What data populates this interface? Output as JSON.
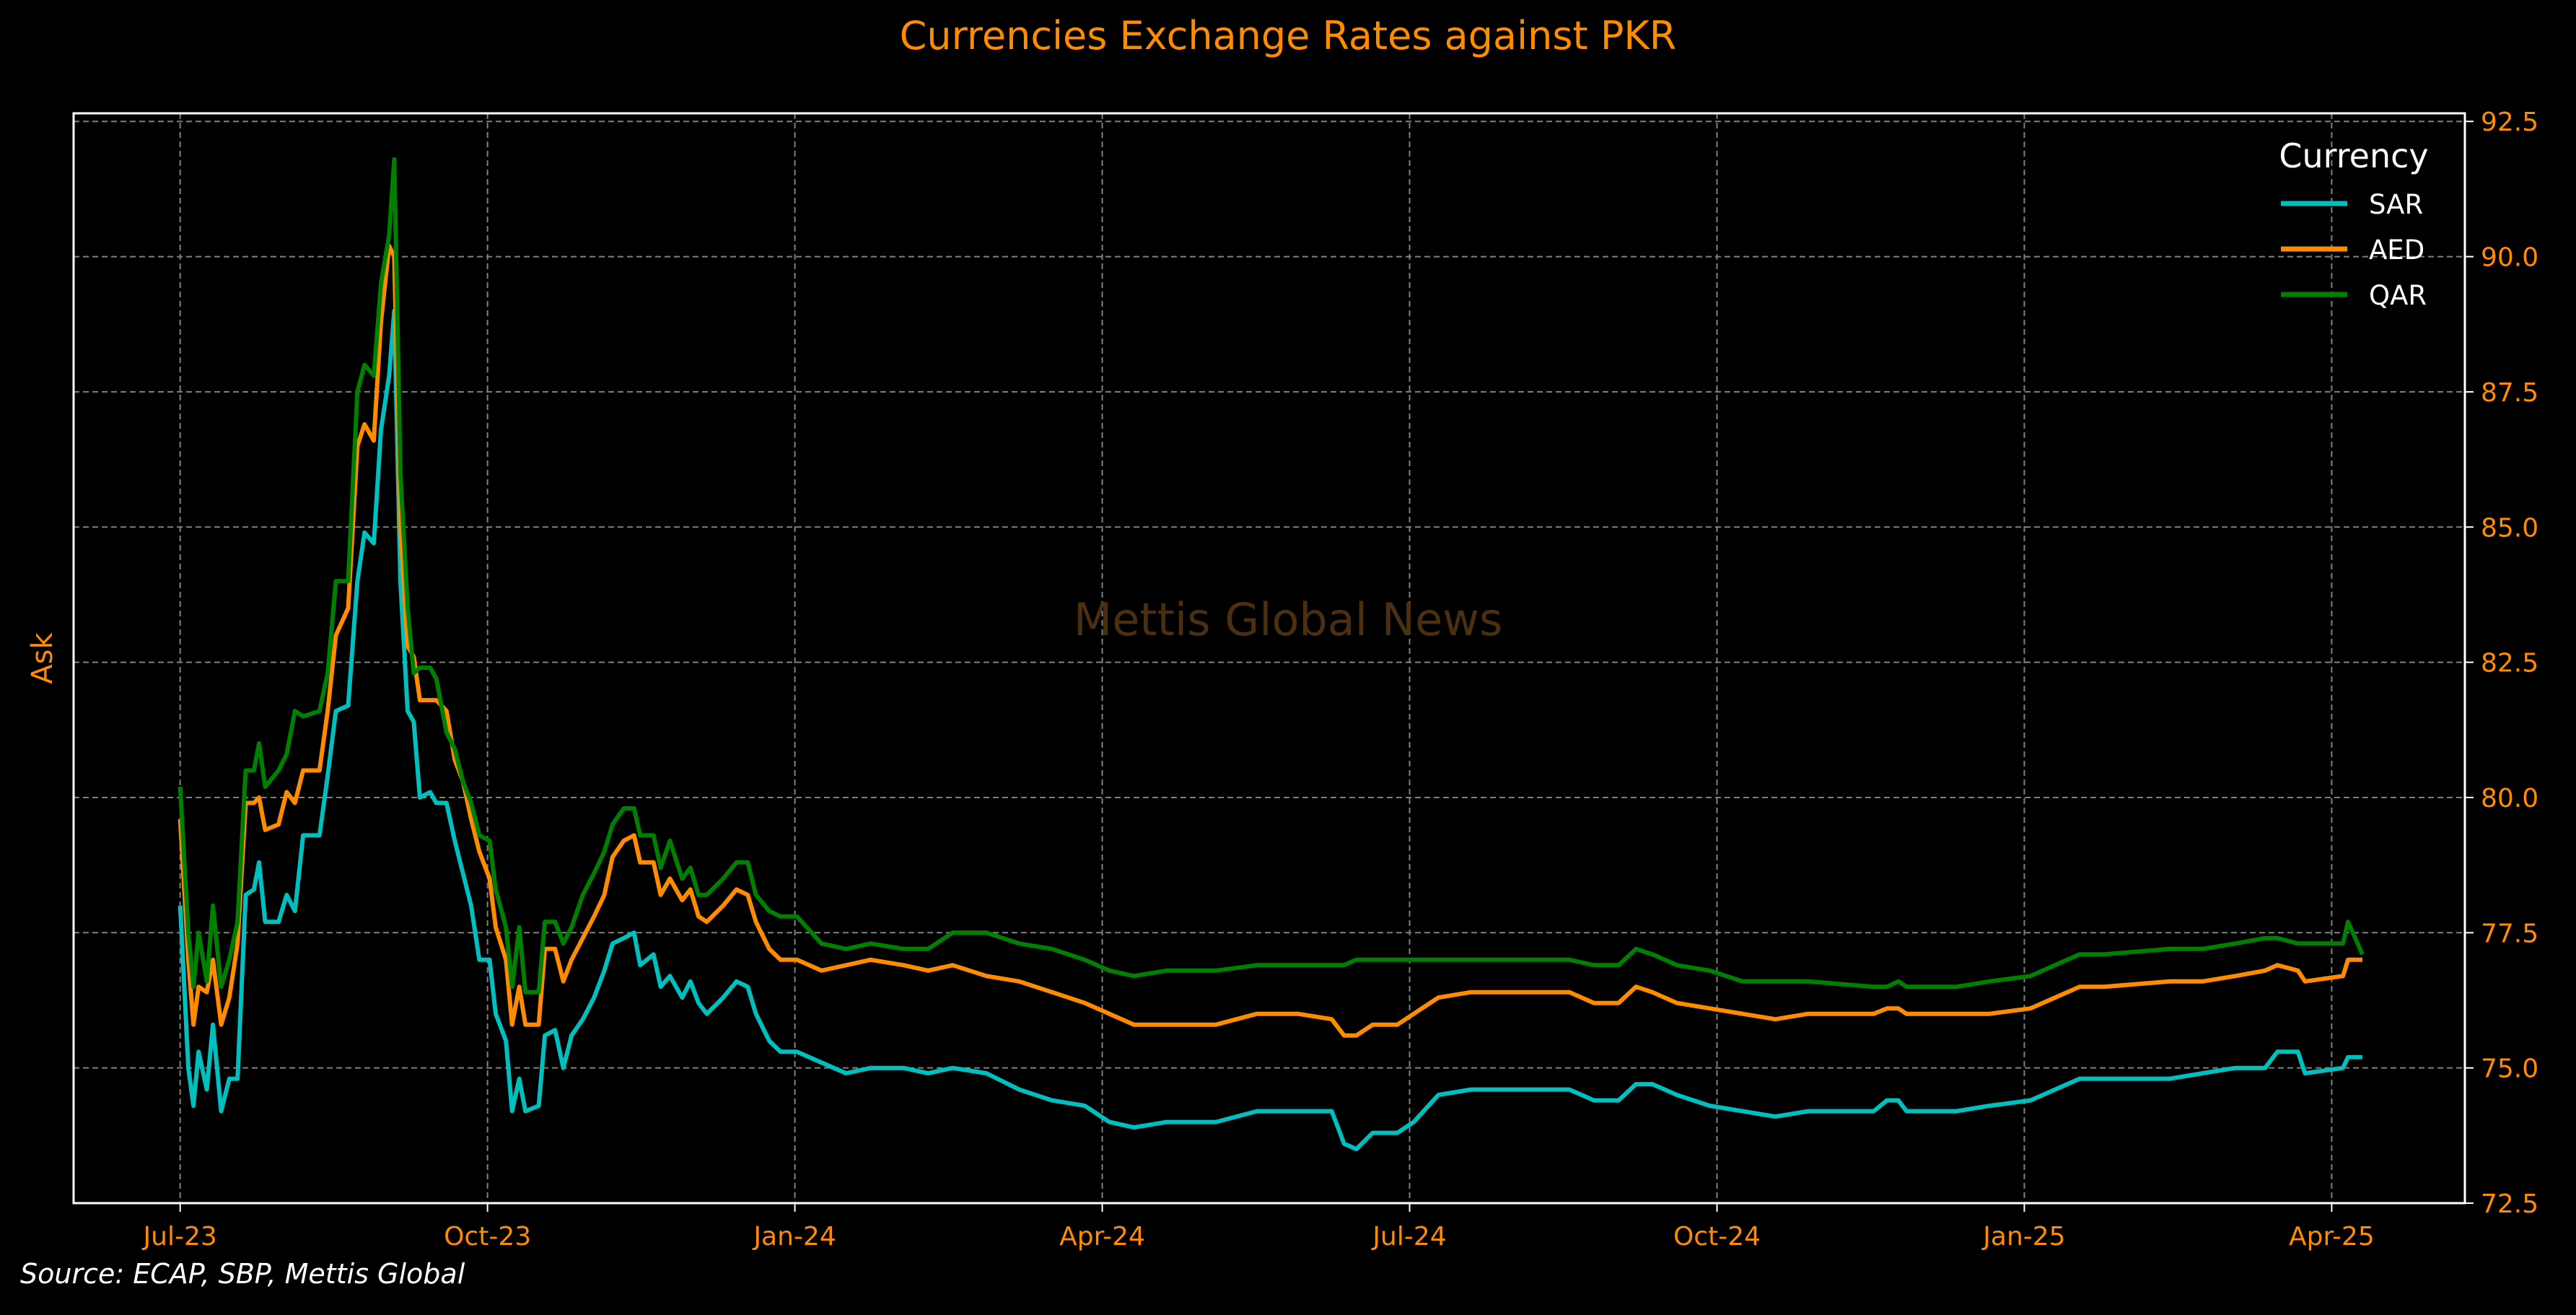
{
  "chart_data": {
    "type": "line",
    "title": "Currencies Exchange Rates against PKR",
    "xlabel": "",
    "ylabel": "Ask",
    "watermark": "Mettis Global News",
    "source": "Source: ECAP, SBP, Mettis Global",
    "x_unit": "months since Jul-23",
    "xlim": [
      -1.04,
      22.3
    ],
    "ylim": [
      72.5,
      92.65
    ],
    "grid": true,
    "y_axis_side": "right",
    "legend": {
      "title": "Currency",
      "placement": "top-right"
    },
    "x_ticks": [
      {
        "value": 0,
        "label": "Jul-23"
      },
      {
        "value": 3,
        "label": "Oct-23"
      },
      {
        "value": 6,
        "label": "Jan-24"
      },
      {
        "value": 9,
        "label": "Apr-24"
      },
      {
        "value": 12,
        "label": "Jul-24"
      },
      {
        "value": 15,
        "label": "Oct-24"
      },
      {
        "value": 18,
        "label": "Jan-25"
      },
      {
        "value": 21,
        "label": "Apr-25"
      }
    ],
    "y_ticks": [
      {
        "value": 72.5,
        "label": "72.5"
      },
      {
        "value": 75.0,
        "label": "75.0"
      },
      {
        "value": 77.5,
        "label": "77.5"
      },
      {
        "value": 80.0,
        "label": "80.0"
      },
      {
        "value": 82.5,
        "label": "82.5"
      },
      {
        "value": 85.0,
        "label": "85.0"
      },
      {
        "value": 87.5,
        "label": "87.5"
      },
      {
        "value": 90.0,
        "label": "90.0"
      },
      {
        "value": 92.5,
        "label": "92.5"
      }
    ],
    "x": [
      0,
      0.08,
      0.13,
      0.18,
      0.26,
      0.32,
      0.4,
      0.48,
      0.56,
      0.64,
      0.72,
      0.77,
      0.83,
      0.96,
      1.04,
      1.12,
      1.2,
      1.36,
      1.44,
      1.52,
      1.64,
      1.73,
      1.8,
      1.89,
      1.96,
      2.04,
      2.09,
      2.15,
      2.22,
      2.28,
      2.34,
      2.44,
      2.5,
      2.6,
      2.68,
      2.76,
      2.84,
      2.92,
      3.02,
      3.08,
      3.18,
      3.24,
      3.31,
      3.37,
      3.5,
      3.56,
      3.66,
      3.74,
      3.82,
      3.93,
      4.04,
      4.14,
      4.22,
      4.33,
      4.43,
      4.49,
      4.62,
      4.69,
      4.78,
      4.9,
      4.98,
      5.06,
      5.14,
      5.3,
      5.43,
      5.54,
      5.62,
      5.75,
      5.86,
      6.02,
      6.26,
      6.5,
      6.74,
      7.06,
      7.3,
      7.54,
      7.87,
      8.19,
      8.51,
      8.83,
      9.07,
      9.31,
      9.63,
      10.11,
      10.51,
      10.91,
      11.24,
      11.36,
      11.48,
      11.64,
      11.88,
      12.04,
      12.28,
      12.6,
      13.0,
      13.56,
      13.8,
      14.04,
      14.21,
      14.37,
      14.61,
      14.93,
      15.25,
      15.57,
      15.89,
      16.53,
      16.66,
      16.77,
      16.85,
      17.34,
      17.66,
      18.06,
      18.3,
      18.54,
      18.78,
      19.42,
      19.74,
      20.06,
      20.35,
      20.47,
      20.67,
      20.74,
      21.11,
      21.16,
      21.3
    ],
    "series": [
      {
        "name": "SAR",
        "color": "#00bfbf",
        "values": [
          78.0,
          75.0,
          74.3,
          75.3,
          74.6,
          75.8,
          74.2,
          74.8,
          74.8,
          78.2,
          78.3,
          78.8,
          77.7,
          77.7,
          78.2,
          77.9,
          79.3,
          79.3,
          80.4,
          81.6,
          81.7,
          84.0,
          84.9,
          84.7,
          86.8,
          87.8,
          89.0,
          84.0,
          81.6,
          81.4,
          80.0,
          80.1,
          79.9,
          79.9,
          79.2,
          78.6,
          78.0,
          77.0,
          77.0,
          76.0,
          75.5,
          74.2,
          74.8,
          74.2,
          74.3,
          75.6,
          75.7,
          75.0,
          75.6,
          75.9,
          76.3,
          76.8,
          77.3,
          77.4,
          77.5,
          76.9,
          77.1,
          76.5,
          76.7,
          76.3,
          76.6,
          76.2,
          76.0,
          76.3,
          76.6,
          76.5,
          76.0,
          75.5,
          75.3,
          75.3,
          75.1,
          74.9,
          75.0,
          75.0,
          74.9,
          75.0,
          74.9,
          74.6,
          74.4,
          74.3,
          74.0,
          73.9,
          74.0,
          74.0,
          74.2,
          74.2,
          74.2,
          73.6,
          73.5,
          73.8,
          73.8,
          74.0,
          74.5,
          74.6,
          74.6,
          74.6,
          74.4,
          74.4,
          74.7,
          74.7,
          74.5,
          74.3,
          74.2,
          74.1,
          74.2,
          74.2,
          74.4,
          74.4,
          74.2,
          74.2,
          74.3,
          74.4,
          74.6,
          74.8,
          74.8,
          74.8,
          74.9,
          75.0,
          75.0,
          75.3,
          75.3,
          74.9,
          75.0,
          75.2,
          75.2
        ]
      },
      {
        "name": "AED",
        "color": "#ff8c00",
        "values": [
          79.6,
          77.0,
          75.8,
          76.5,
          76.4,
          77.0,
          75.8,
          76.3,
          77.3,
          79.9,
          79.9,
          80.0,
          79.4,
          79.5,
          80.1,
          79.9,
          80.5,
          80.5,
          81.6,
          83.0,
          83.5,
          86.5,
          86.9,
          86.6,
          88.8,
          90.2,
          90.0,
          85.0,
          82.8,
          82.6,
          81.8,
          81.8,
          81.8,
          81.6,
          80.7,
          80.3,
          79.6,
          79.0,
          78.5,
          77.6,
          77.0,
          75.8,
          76.5,
          75.8,
          75.8,
          77.2,
          77.2,
          76.6,
          77.0,
          77.4,
          77.8,
          78.2,
          78.9,
          79.2,
          79.3,
          78.8,
          78.8,
          78.2,
          78.5,
          78.1,
          78.3,
          77.8,
          77.7,
          78.0,
          78.3,
          78.2,
          77.7,
          77.2,
          77.0,
          77.0,
          76.8,
          76.9,
          77.0,
          76.9,
          76.8,
          76.9,
          76.7,
          76.6,
          76.4,
          76.2,
          76.0,
          75.8,
          75.8,
          75.8,
          76.0,
          76.0,
          75.9,
          75.6,
          75.6,
          75.8,
          75.8,
          76.0,
          76.3,
          76.4,
          76.4,
          76.4,
          76.2,
          76.2,
          76.5,
          76.4,
          76.2,
          76.1,
          76.0,
          75.9,
          76.0,
          76.0,
          76.1,
          76.1,
          76.0,
          76.0,
          76.0,
          76.1,
          76.3,
          76.5,
          76.5,
          76.6,
          76.6,
          76.7,
          76.8,
          76.9,
          76.8,
          76.6,
          76.7,
          77.0,
          77.0
        ]
      },
      {
        "name": "QAR",
        "color": "#008000",
        "values": [
          80.2,
          77.5,
          76.5,
          77.5,
          76.6,
          78.0,
          76.5,
          77.0,
          77.7,
          80.5,
          80.5,
          81.0,
          80.2,
          80.5,
          80.8,
          81.6,
          81.5,
          81.6,
          82.3,
          84.0,
          84.0,
          87.5,
          88.0,
          87.8,
          89.5,
          90.4,
          91.8,
          86.0,
          83.5,
          82.3,
          82.4,
          82.4,
          82.2,
          81.2,
          80.9,
          80.3,
          79.9,
          79.3,
          79.2,
          78.3,
          77.6,
          76.5,
          77.6,
          76.4,
          76.4,
          77.7,
          77.7,
          77.3,
          77.6,
          78.2,
          78.6,
          79.0,
          79.5,
          79.8,
          79.8,
          79.3,
          79.3,
          78.7,
          79.2,
          78.5,
          78.7,
          78.2,
          78.2,
          78.5,
          78.8,
          78.8,
          78.2,
          77.9,
          77.8,
          77.8,
          77.3,
          77.2,
          77.3,
          77.2,
          77.2,
          77.5,
          77.5,
          77.3,
          77.2,
          77.0,
          76.8,
          76.7,
          76.8,
          76.8,
          76.9,
          76.9,
          76.9,
          76.9,
          77.0,
          77.0,
          77.0,
          77.0,
          77.0,
          77.0,
          77.0,
          77.0,
          76.9,
          76.9,
          77.2,
          77.1,
          76.9,
          76.8,
          76.6,
          76.6,
          76.6,
          76.5,
          76.5,
          76.6,
          76.5,
          76.5,
          76.6,
          76.7,
          76.9,
          77.1,
          77.1,
          77.2,
          77.2,
          77.3,
          77.4,
          77.4,
          77.3,
          77.3,
          77.3,
          77.7,
          77.1
        ]
      }
    ],
    "colors": {
      "background": "#000000",
      "axis_text": "#ff8c00",
      "frame": "#ffffff",
      "grid": "#808080",
      "watermark": "#4a3010"
    }
  }
}
